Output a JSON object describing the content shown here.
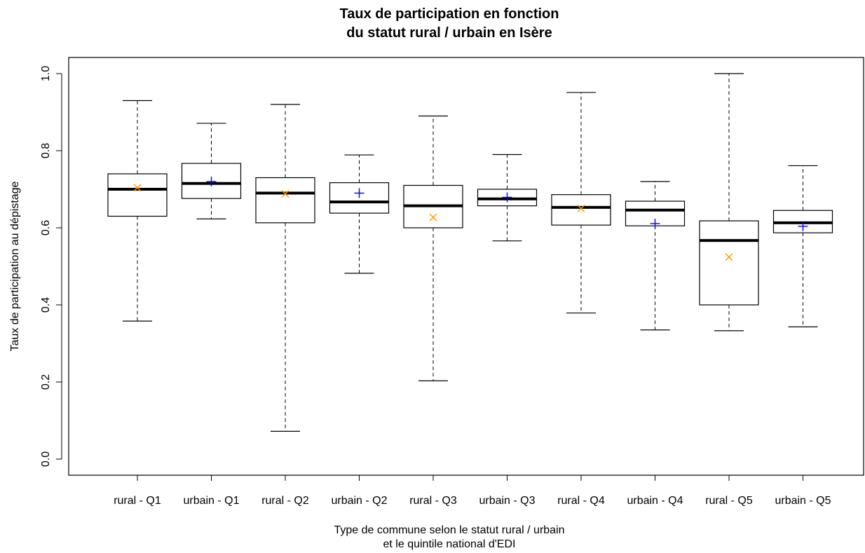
{
  "chart_data": {
    "type": "boxplot",
    "title": "Taux de participation en fonction",
    "subtitle": "du statut rural / urbain en Isère",
    "xlabel": [
      "Type de commune selon le statut rural / urbain",
      "et le quintile national d'EDI"
    ],
    "ylabel": "Taux de participation au dépistage",
    "ylim": [
      0.0,
      1.0
    ],
    "yticks": [
      "0.0",
      "0.2",
      "0.4",
      "0.6",
      "0.8",
      "1.0"
    ],
    "grid": false,
    "categories": [
      "rural - Q1",
      "urbain - Q1",
      "rural - Q2",
      "urbain - Q2",
      "rural - Q3",
      "urbain - Q3",
      "rural - Q4",
      "urbain - Q4",
      "rural - Q5",
      "urbain - Q5"
    ],
    "boxes": [
      {
        "category": "rural - Q1",
        "min": 0.358,
        "q1": 0.63,
        "median": 0.7,
        "q3": 0.74,
        "max": 0.93,
        "mean": 0.704,
        "mean_marker": "x",
        "mean_color": "#ff9900"
      },
      {
        "category": "urbain - Q1",
        "min": 0.623,
        "q1": 0.676,
        "median": 0.715,
        "q3": 0.767,
        "max": 0.871,
        "mean": 0.72,
        "mean_marker": "+",
        "mean_color": "#0000ff"
      },
      {
        "category": "rural - Q2",
        "min": 0.072,
        "q1": 0.613,
        "median": 0.69,
        "q3": 0.73,
        "max": 0.92,
        "mean": 0.688,
        "mean_marker": "x",
        "mean_color": "#ff9900"
      },
      {
        "category": "urbain - Q2",
        "min": 0.482,
        "q1": 0.638,
        "median": 0.667,
        "q3": 0.717,
        "max": 0.789,
        "mean": 0.69,
        "mean_marker": "+",
        "mean_color": "#0000ff"
      },
      {
        "category": "rural - Q3",
        "min": 0.203,
        "q1": 0.6,
        "median": 0.657,
        "q3": 0.71,
        "max": 0.89,
        "mean": 0.627,
        "mean_marker": "x",
        "mean_color": "#ff9900"
      },
      {
        "category": "urbain - Q3",
        "min": 0.566,
        "q1": 0.657,
        "median": 0.675,
        "q3": 0.7,
        "max": 0.79,
        "mean": 0.679,
        "mean_marker": "+",
        "mean_color": "#0000ff"
      },
      {
        "category": "rural - Q4",
        "min": 0.379,
        "q1": 0.607,
        "median": 0.653,
        "q3": 0.686,
        "max": 0.951,
        "mean": 0.65,
        "mean_marker": "x",
        "mean_color": "#ff9900"
      },
      {
        "category": "urbain - Q4",
        "min": 0.335,
        "q1": 0.605,
        "median": 0.646,
        "q3": 0.669,
        "max": 0.72,
        "mean": 0.611,
        "mean_marker": "+",
        "mean_color": "#0000ff"
      },
      {
        "category": "rural - Q5",
        "min": 0.333,
        "q1": 0.4,
        "median": 0.567,
        "q3": 0.618,
        "max": 1.0,
        "mean": 0.524,
        "mean_marker": "x",
        "mean_color": "#ff9900"
      },
      {
        "category": "urbain - Q5",
        "min": 0.343,
        "q1": 0.587,
        "median": 0.613,
        "q3": 0.645,
        "max": 0.761,
        "mean": 0.604,
        "mean_marker": "+",
        "mean_color": "#0000ff"
      }
    ]
  }
}
